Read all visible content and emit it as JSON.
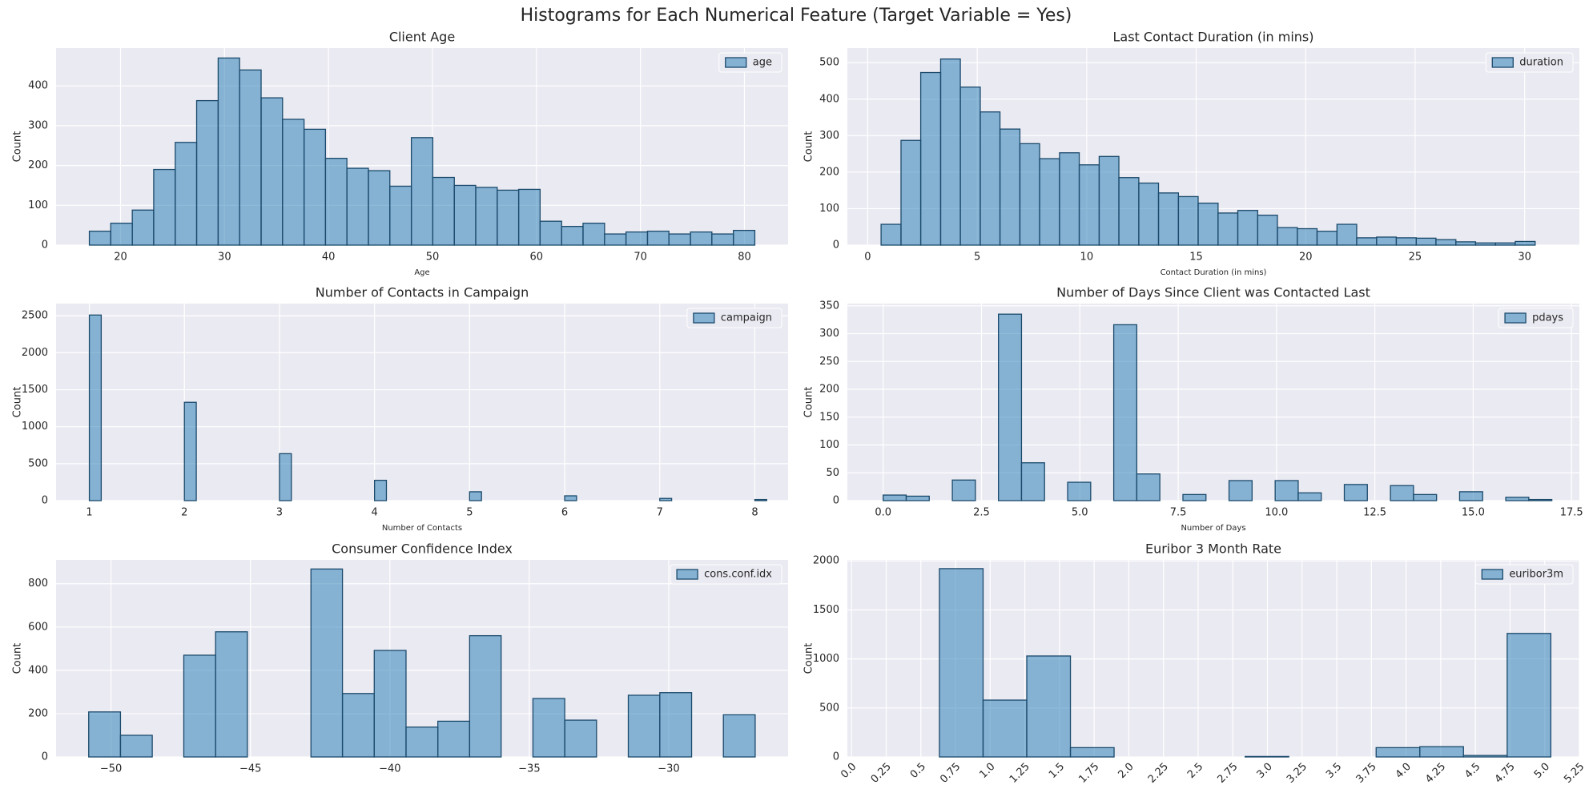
{
  "title": "Histograms for Each Numerical Feature (Target Variable = Yes)",
  "chart_data": [
    {
      "type": "histogram",
      "title": "Client Age",
      "xlabel": "Age",
      "ylabel": "Count",
      "bins": [
        17,
        19.06,
        21.13,
        23.19,
        25.26,
        27.32,
        29.39,
        31.45,
        33.52,
        35.58,
        37.65,
        39.71,
        41.77,
        43.84,
        45.9,
        47.97,
        50.03,
        52.1,
        54.16,
        56.23,
        58.29,
        60.35,
        62.42,
        64.48,
        66.55,
        68.61,
        70.68,
        72.74,
        74.81,
        76.87,
        78.94,
        81
      ],
      "series": [
        {
          "name": "age",
          "color": "#1f77b4",
          "values": [
            35,
            55,
            88,
            190,
            258,
            363,
            470,
            440,
            370,
            316,
            291,
            218,
            193,
            187,
            148,
            270,
            170,
            150,
            145,
            138,
            140,
            60,
            47,
            55,
            28,
            33,
            35,
            28,
            33,
            28,
            37
          ]
        }
      ],
      "edgecolor": "#1b4a6b",
      "xlim": [
        13.8,
        84.2
      ],
      "ylim": [
        0,
        495
      ],
      "xticks": [
        20,
        30,
        40,
        50,
        60,
        70,
        80
      ],
      "yticks": [
        0,
        100,
        200,
        300,
        400
      ],
      "grid": true,
      "legend": "upper right"
    },
    {
      "type": "histogram",
      "title": "Last Contact Duration (in mins)",
      "xlabel": "Contact Duration (in mins)",
      "ylabel": "Count",
      "bins": [
        0.61,
        1.52,
        2.42,
        3.33,
        4.23,
        5.14,
        6.04,
        6.95,
        7.85,
        8.76,
        9.66,
        10.57,
        11.47,
        12.38,
        13.28,
        14.19,
        15.09,
        16.0,
        16.9,
        17.81,
        18.71,
        19.62,
        20.52,
        21.43,
        22.33,
        23.24,
        24.14,
        25.05,
        25.95,
        26.86,
        27.76,
        28.67,
        29.57,
        30.48
      ],
      "series": [
        {
          "name": "duration",
          "color": "#1f77b4",
          "values": [
            57,
            287,
            473,
            510,
            433,
            365,
            318,
            278,
            237,
            253,
            220,
            243,
            185,
            170,
            143,
            133,
            115,
            88,
            95,
            82,
            48,
            45,
            38,
            57,
            20,
            22,
            20,
            19,
            15,
            9,
            6,
            6,
            10
          ]
        }
      ],
      "edgecolor": "#1b4a6b",
      "xlim": [
        -0.93,
        32.5
      ],
      "ylim": [
        0,
        540
      ],
      "xticks": [
        0,
        5,
        10,
        15,
        20,
        25,
        30
      ],
      "yticks": [
        0,
        100,
        200,
        300,
        400,
        500
      ],
      "grid": true,
      "legend": "upper right"
    },
    {
      "type": "histogram",
      "title": "Number of Contacts in Campaign",
      "xlabel": "Number of Contacts",
      "ylabel": "Count",
      "bins": [
        1,
        1.125,
        1.25,
        1.375,
        1.5,
        1.625,
        1.75,
        1.875,
        2,
        2.125,
        2.25,
        2.375,
        2.5,
        2.625,
        2.75,
        2.875,
        3,
        3.125,
        3.25,
        3.375,
        3.5,
        3.625,
        3.75,
        3.875,
        4,
        4.125,
        4.25,
        4.375,
        4.5,
        4.625,
        4.75,
        4.875,
        5,
        5.125,
        5.25,
        5.375,
        5.5,
        5.625,
        5.75,
        5.875,
        6,
        6.125,
        6.25,
        6.375,
        6.5,
        6.625,
        6.75,
        6.875,
        7,
        7.125,
        7.25,
        7.375,
        7.5,
        7.625,
        7.75,
        7.875,
        8,
        8.125
      ],
      "series": [
        {
          "name": "campaign",
          "color": "#1f77b4",
          "values": [
            2510,
            0,
            0,
            0,
            0,
            0,
            0,
            0,
            1330,
            0,
            0,
            0,
            0,
            0,
            0,
            0,
            635,
            0,
            0,
            0,
            0,
            0,
            0,
            0,
            275,
            0,
            0,
            0,
            0,
            0,
            0,
            0,
            120,
            0,
            0,
            0,
            0,
            0,
            0,
            0,
            65,
            0,
            0,
            0,
            0,
            0,
            0,
            0,
            30,
            0,
            0,
            0,
            0,
            0,
            0,
            0,
            15
          ]
        }
      ],
      "edgecolor": "#1b4a6b",
      "xlim": [
        0.65,
        8.35
      ],
      "ylim": [
        0,
        2665
      ],
      "xticks": [
        1,
        2,
        3,
        4,
        5,
        6,
        7,
        8
      ],
      "yticks": [
        0,
        500,
        1000,
        1500,
        2000,
        2500
      ],
      "grid": true,
      "legend": "upper right"
    },
    {
      "type": "histogram",
      "title": "Number of Days Since Client was Contacted Last",
      "xlabel": "Number of Days",
      "ylabel": "Count",
      "bins": [
        0,
        0.586,
        1.172,
        1.759,
        2.345,
        2.931,
        3.517,
        4.103,
        4.69,
        5.276,
        5.862,
        6.448,
        7.034,
        7.621,
        8.207,
        8.793,
        9.379,
        9.966,
        10.552,
        11.138,
        11.724,
        12.31,
        12.897,
        13.483,
        14.069,
        14.655,
        15.241,
        15.828,
        16.414,
        17
      ],
      "series": [
        {
          "name": "pdays",
          "color": "#1f77b4",
          "values": [
            10,
            8,
            0,
            37,
            0,
            335,
            68,
            0,
            33,
            0,
            316,
            48,
            0,
            11,
            0,
            36,
            0,
            36,
            14,
            0,
            29,
            0,
            27,
            11,
            0,
            16,
            0,
            6,
            2
          ]
        }
      ],
      "edgecolor": "#1b4a6b",
      "xlim": [
        -0.91,
        17.7
      ],
      "ylim": [
        0,
        354
      ],
      "xticks": [
        {
          "value": 0,
          "label": "0.0"
        },
        2.5,
        {
          "value": 5,
          "label": "5.0"
        },
        7.5,
        {
          "value": 10,
          "label": "10.0"
        },
        12.5,
        {
          "value": 15,
          "label": "15.0"
        },
        17.5
      ],
      "yticks": [
        0,
        50,
        100,
        150,
        200,
        250,
        300,
        350
      ],
      "grid": true,
      "legend": "upper right"
    },
    {
      "type": "histogram",
      "title": "Consumer Confidence Index",
      "ylabel": "Count",
      "bins": [
        -50.8,
        -49.66,
        -48.52,
        -47.39,
        -46.25,
        -45.11,
        -43.97,
        -42.83,
        -41.7,
        -40.56,
        -39.42,
        -38.28,
        -37.14,
        -36.01,
        -34.87,
        -33.73,
        -32.59,
        -31.45,
        -30.32,
        -29.18,
        -28.04,
        -26.9
      ],
      "series": [
        {
          "name": "cons.conf.idx",
          "color": "#1f77b4",
          "values": [
            208,
            100,
            0,
            470,
            578,
            0,
            0,
            868,
            293,
            492,
            138,
            165,
            560,
            0,
            270,
            170,
            0,
            285,
            297,
            0,
            195
          ]
        }
      ],
      "edgecolor": "#1b4a6b",
      "xlim": [
        -51.97,
        -25.72
      ],
      "ylim": [
        0,
        910
      ],
      "xticks": [
        {
          "value": -50,
          "label": "−50"
        },
        {
          "value": -45,
          "label": "−45"
        },
        {
          "value": -40,
          "label": "−40"
        },
        {
          "value": -35,
          "label": "−35"
        },
        {
          "value": -30,
          "label": "−30"
        }
      ],
      "yticks": [
        0,
        200,
        400,
        600,
        800
      ],
      "grid": true,
      "legend": "upper right"
    },
    {
      "type": "histogram",
      "title": "Euribor 3 Month Rate",
      "ylabel": "Count",
      "bins": [
        0.634,
        0.949,
        1.264,
        1.579,
        1.894,
        2.209,
        2.524,
        2.839,
        3.154,
        3.469,
        3.784,
        4.099,
        4.414,
        4.729,
        5.044
      ],
      "series": [
        {
          "name": "euribor3m",
          "color": "#1f77b4",
          "values": [
            1921,
            580,
            1030,
            95,
            0,
            0,
            0,
            5,
            0,
            0,
            95,
            105,
            15,
            1260
          ]
        }
      ],
      "edgecolor": "#1b4a6b",
      "xlim": [
        -0.03,
        5.25
      ],
      "ylim": [
        0,
        2010
      ],
      "xticks": [
        {
          "value": 0,
          "label": "0.0"
        },
        0.25,
        0.5,
        0.75,
        {
          "value": 1,
          "label": "1.0"
        },
        1.25,
        1.5,
        1.75,
        {
          "value": 2,
          "label": "2.0"
        },
        2.25,
        2.5,
        2.75,
        {
          "value": 3,
          "label": "3.0"
        },
        3.25,
        3.5,
        3.75,
        {
          "value": 4,
          "label": "4.0"
        },
        4.25,
        4.5,
        4.75,
        {
          "value": 5,
          "label": "5.0"
        },
        5.25
      ],
      "xtick_rotation": 45,
      "yticks": [
        0,
        500,
        1000,
        1500,
        2000
      ],
      "grid": true,
      "legend": "upper right"
    }
  ]
}
